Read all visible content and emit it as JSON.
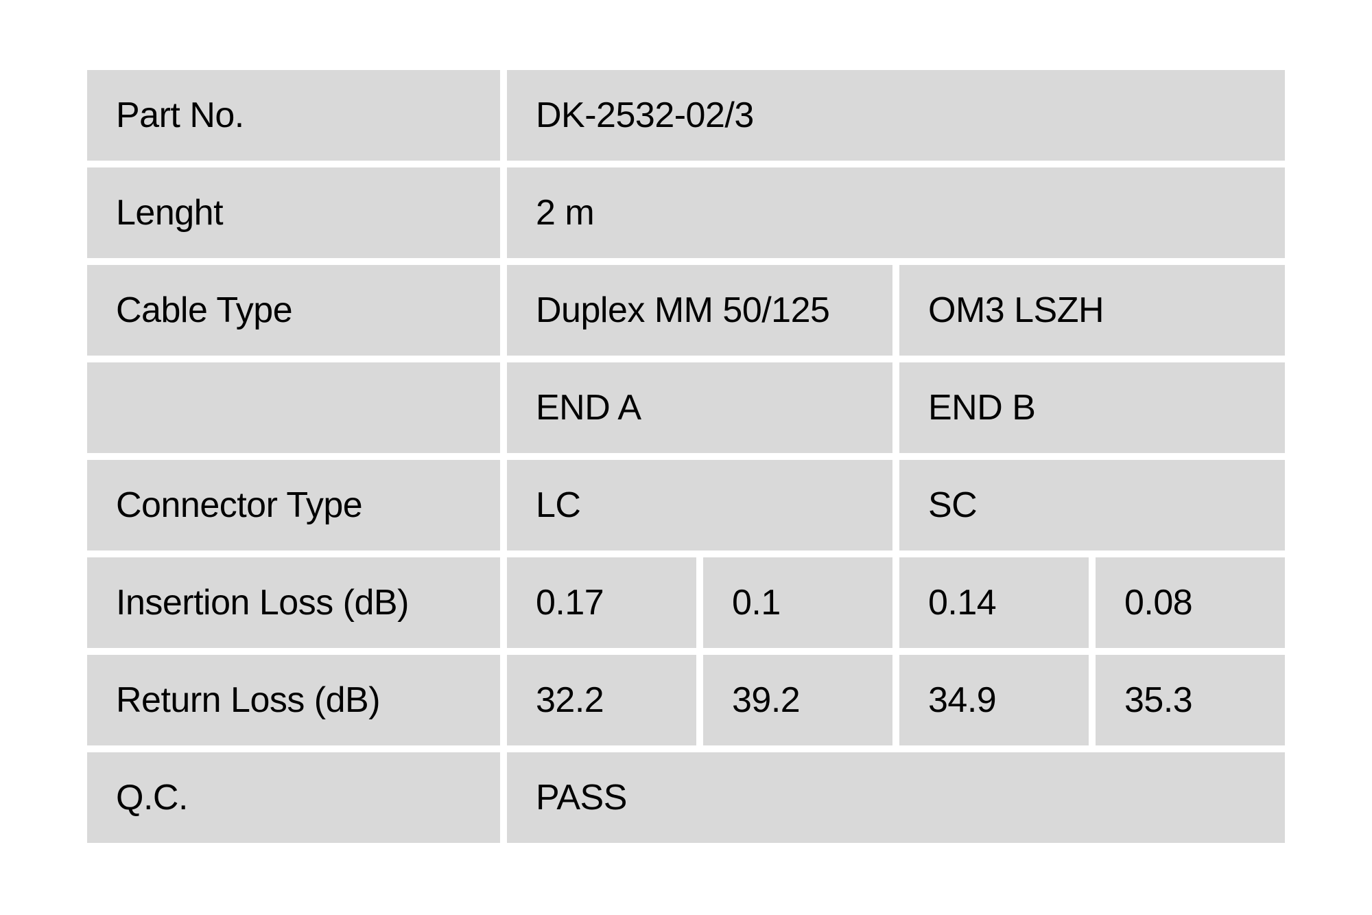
{
  "colors": {
    "cell_bg": "#d9d9d9",
    "page_bg": "#ffffff",
    "text": "#000000"
  },
  "table": {
    "rows": [
      {
        "label": "Part No.",
        "cells": [
          {
            "text": "DK-2532-02/3",
            "span": 4
          }
        ]
      },
      {
        "label": "Lenght",
        "cells": [
          {
            "text": "2 m",
            "span": 4
          }
        ]
      },
      {
        "label": "Cable Type",
        "cells": [
          {
            "text": "Duplex MM 50/125",
            "span": 2
          },
          {
            "text": "OM3 LSZH",
            "span": 2
          }
        ]
      },
      {
        "label": "",
        "cells": [
          {
            "text": "END A",
            "span": 2
          },
          {
            "text": "END B",
            "span": 2
          }
        ]
      },
      {
        "label": "Connector Type",
        "cells": [
          {
            "text": "LC",
            "span": 2
          },
          {
            "text": "SC",
            "span": 2
          }
        ]
      },
      {
        "label": "Insertion Loss (dB)",
        "cells": [
          {
            "text": "0.17",
            "span": 1
          },
          {
            "text": "0.1",
            "span": 1
          },
          {
            "text": "0.14",
            "span": 1
          },
          {
            "text": "0.08",
            "span": 1
          }
        ]
      },
      {
        "label": "Return Loss (dB)",
        "cells": [
          {
            "text": "32.2",
            "span": 1
          },
          {
            "text": "39.2",
            "span": 1
          },
          {
            "text": "34.9",
            "span": 1
          },
          {
            "text": "35.3",
            "span": 1
          }
        ]
      },
      {
        "label": "Q.C.",
        "cells": [
          {
            "text": "PASS",
            "span": 4
          }
        ]
      }
    ]
  }
}
